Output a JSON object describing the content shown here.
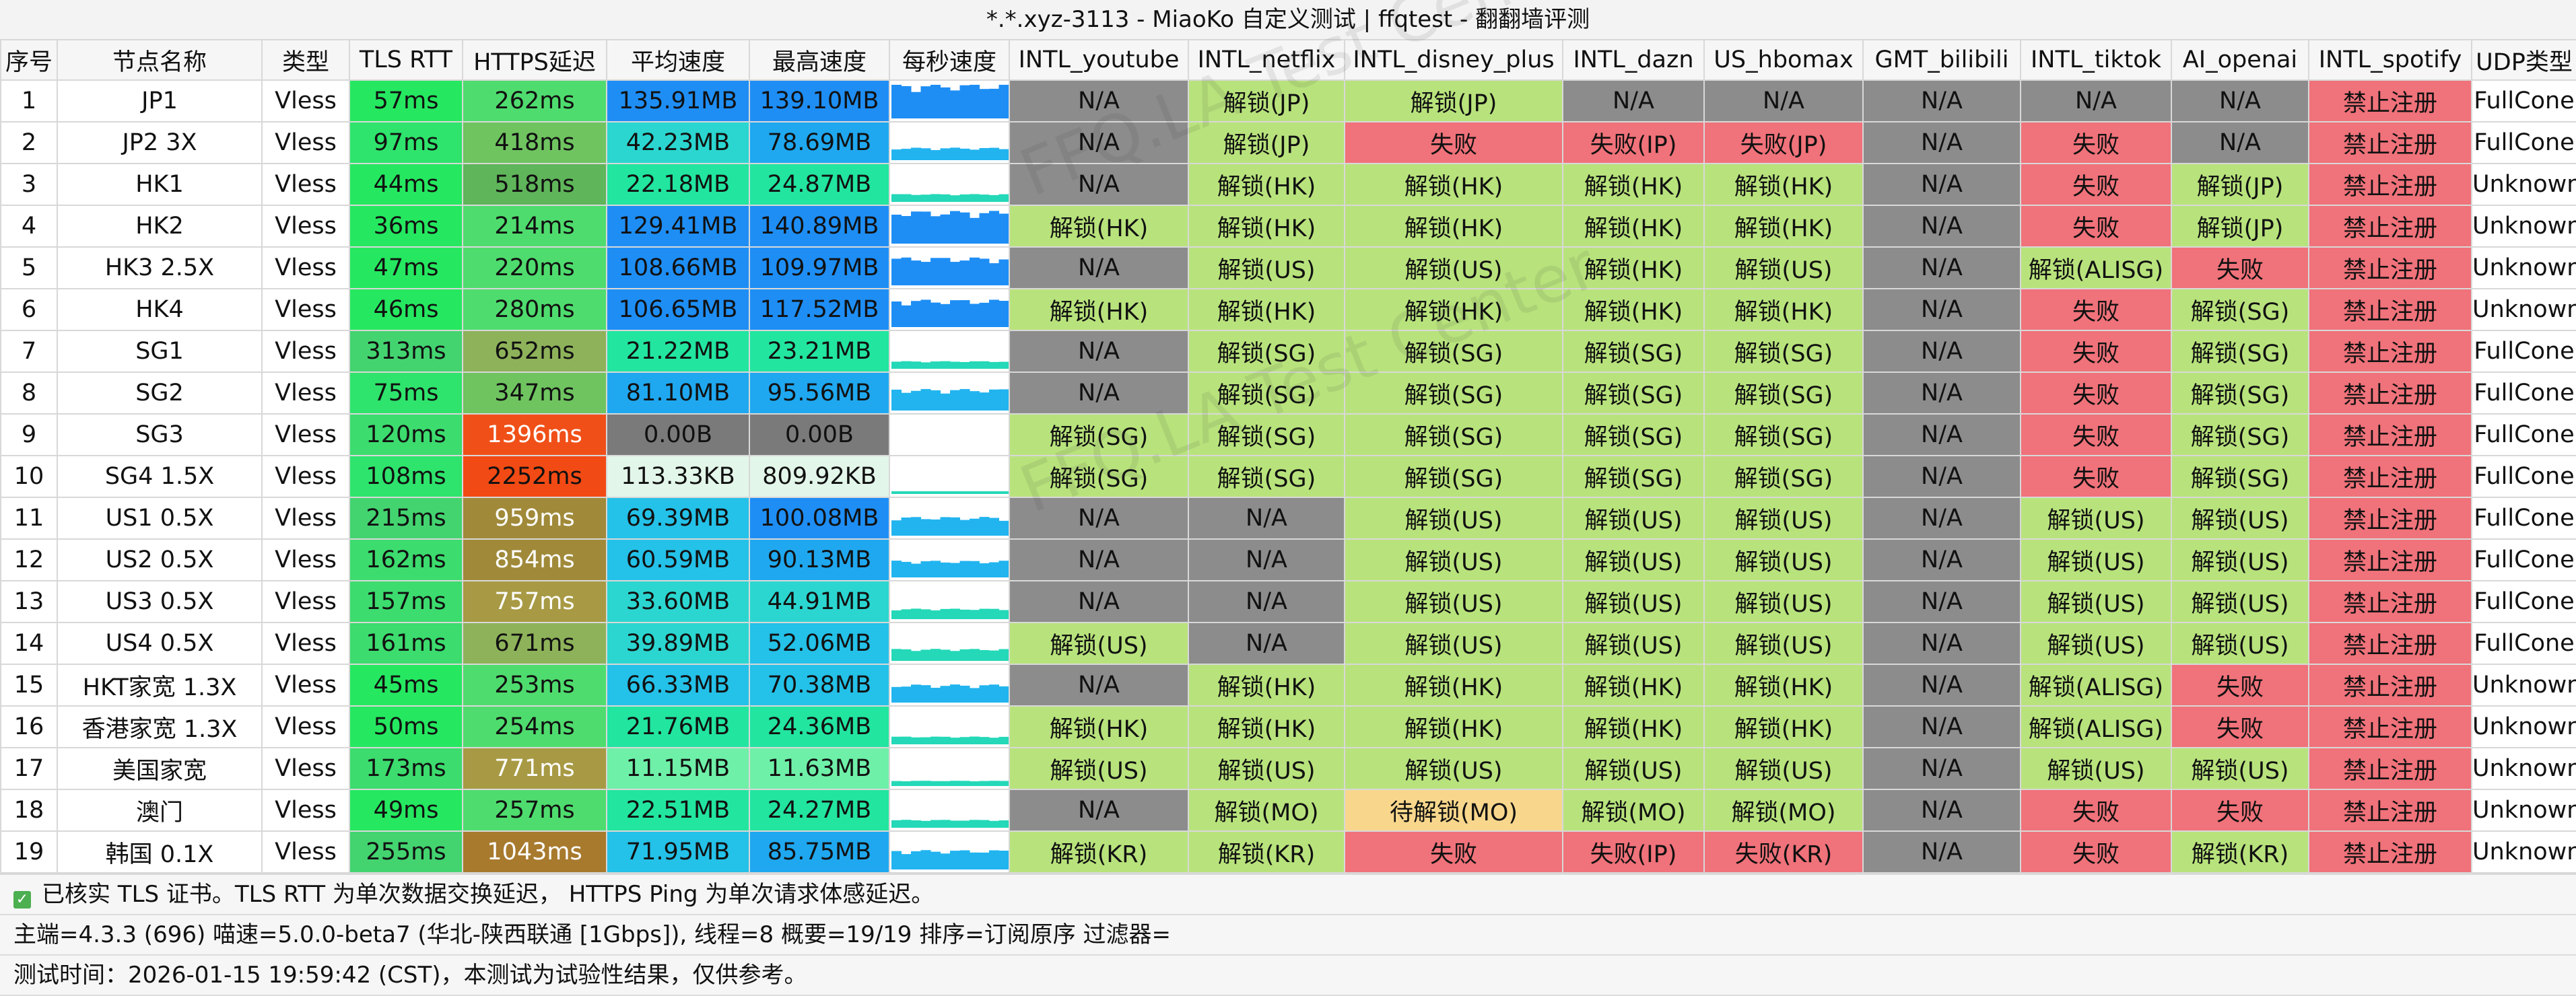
{
  "title": "*.*.xyz-3113 - MiaoKo 自定义测试 | ffqtest - 翻翻墙评测",
  "watermark": "FFQ.LA Test Center",
  "columns": [
    "序号",
    "节点名称",
    "类型",
    "TLS RTT",
    "HTTPS延迟",
    "平均速度",
    "最高速度",
    "每秒速度",
    "INTL_youtube",
    "INTL_netflix",
    "INTL_disney_plus",
    "INTL_dazn",
    "US_hbomax",
    "GMT_bilibili",
    "INTL_tiktok",
    "AI_openai",
    "INTL_spotify",
    "UDP类型"
  ],
  "colors": {
    "ok": "#b8e37c",
    "na": "#8c8c8c",
    "fail": "#f0727a",
    "pending": "#f8d78c",
    "tls": "#2ee86a",
    "https_good": "#5ad16a",
    "https_mid": "#9a9a40",
    "https_bad": "#f05a20",
    "avg": "#1e9ef2",
    "max": "#1e9ef2",
    "spark": "#2196f3"
  },
  "rows": [
    {
      "id": "1",
      "name": "JP1",
      "type": "Vless",
      "tls": "57ms",
      "https": "262ms",
      "avg": "135.91MB",
      "max": "139.10MB",
      "yt": "N/A",
      "nf": "解锁(JP)",
      "dp": "解锁(JP)",
      "dazn": "N/A",
      "hbo": "N/A",
      "bili": "N/A",
      "tt": "N/A",
      "ai": "N/A",
      "sp": "禁止注册",
      "udp": "FullCone"
    },
    {
      "id": "2",
      "name": "JP2 3X",
      "type": "Vless",
      "tls": "97ms",
      "https": "418ms",
      "avg": "42.23MB",
      "max": "78.69MB",
      "yt": "N/A",
      "nf": "解锁(JP)",
      "dp": "失败",
      "dazn": "失败(IP)",
      "hbo": "失败(JP)",
      "bili": "N/A",
      "tt": "失败",
      "ai": "N/A",
      "sp": "禁止注册",
      "udp": "FullCone"
    },
    {
      "id": "3",
      "name": "HK1",
      "type": "Vless",
      "tls": "44ms",
      "https": "518ms",
      "avg": "22.18MB",
      "max": "24.87MB",
      "yt": "N/A",
      "nf": "解锁(HK)",
      "dp": "解锁(HK)",
      "dazn": "解锁(HK)",
      "hbo": "解锁(HK)",
      "bili": "N/A",
      "tt": "失败",
      "ai": "解锁(JP)",
      "sp": "禁止注册",
      "udp": "Unknown"
    },
    {
      "id": "4",
      "name": "HK2",
      "type": "Vless",
      "tls": "36ms",
      "https": "214ms",
      "avg": "129.41MB",
      "max": "140.89MB",
      "yt": "解锁(HK)",
      "nf": "解锁(HK)",
      "dp": "解锁(HK)",
      "dazn": "解锁(HK)",
      "hbo": "解锁(HK)",
      "bili": "N/A",
      "tt": "失败",
      "ai": "解锁(JP)",
      "sp": "禁止注册",
      "udp": "Unknown"
    },
    {
      "id": "5",
      "name": "HK3 2.5X",
      "type": "Vless",
      "tls": "47ms",
      "https": "220ms",
      "avg": "108.66MB",
      "max": "109.97MB",
      "yt": "N/A",
      "nf": "解锁(US)",
      "dp": "解锁(US)",
      "dazn": "解锁(HK)",
      "hbo": "解锁(US)",
      "bili": "N/A",
      "tt": "解锁(ALISG)",
      "ai": "失败",
      "sp": "禁止注册",
      "udp": "Unknown"
    },
    {
      "id": "6",
      "name": "HK4",
      "type": "Vless",
      "tls": "46ms",
      "https": "280ms",
      "avg": "106.65MB",
      "max": "117.52MB",
      "yt": "解锁(HK)",
      "nf": "解锁(HK)",
      "dp": "解锁(HK)",
      "dazn": "解锁(HK)",
      "hbo": "解锁(HK)",
      "bili": "N/A",
      "tt": "失败",
      "ai": "解锁(SG)",
      "sp": "禁止注册",
      "udp": "Unknown"
    },
    {
      "id": "7",
      "name": "SG1",
      "type": "Vless",
      "tls": "313ms",
      "https": "652ms",
      "avg": "21.22MB",
      "max": "23.21MB",
      "yt": "N/A",
      "nf": "解锁(SG)",
      "dp": "解锁(SG)",
      "dazn": "解锁(SG)",
      "hbo": "解锁(SG)",
      "bili": "N/A",
      "tt": "失败",
      "ai": "解锁(SG)",
      "sp": "禁止注册",
      "udp": "FullCone"
    },
    {
      "id": "8",
      "name": "SG2",
      "type": "Vless",
      "tls": "75ms",
      "https": "347ms",
      "avg": "81.10MB",
      "max": "95.56MB",
      "yt": "N/A",
      "nf": "解锁(SG)",
      "dp": "解锁(SG)",
      "dazn": "解锁(SG)",
      "hbo": "解锁(SG)",
      "bili": "N/A",
      "tt": "失败",
      "ai": "解锁(SG)",
      "sp": "禁止注册",
      "udp": "FullCone"
    },
    {
      "id": "9",
      "name": "SG3",
      "type": "Vless",
      "tls": "120ms",
      "https": "1396ms",
      "avg": "0.00B",
      "max": "0.00B",
      "yt": "解锁(SG)",
      "nf": "解锁(SG)",
      "dp": "解锁(SG)",
      "dazn": "解锁(SG)",
      "hbo": "解锁(SG)",
      "bili": "N/A",
      "tt": "失败",
      "ai": "解锁(SG)",
      "sp": "禁止注册",
      "udp": "FullCone"
    },
    {
      "id": "10",
      "name": "SG4 1.5X",
      "type": "Vless",
      "tls": "108ms",
      "https": "2252ms",
      "avg": "113.33KB",
      "max": "809.92KB",
      "yt": "解锁(SG)",
      "nf": "解锁(SG)",
      "dp": "解锁(SG)",
      "dazn": "解锁(SG)",
      "hbo": "解锁(SG)",
      "bili": "N/A",
      "tt": "失败",
      "ai": "解锁(SG)",
      "sp": "禁止注册",
      "udp": "FullCone"
    },
    {
      "id": "11",
      "name": "US1 0.5X",
      "type": "Vless",
      "tls": "215ms",
      "https": "959ms",
      "avg": "69.39MB",
      "max": "100.08MB",
      "yt": "N/A",
      "nf": "N/A",
      "dp": "解锁(US)",
      "dazn": "解锁(US)",
      "hbo": "解锁(US)",
      "bili": "N/A",
      "tt": "解锁(US)",
      "ai": "解锁(US)",
      "sp": "禁止注册",
      "udp": "FullCone"
    },
    {
      "id": "12",
      "name": "US2 0.5X",
      "type": "Vless",
      "tls": "162ms",
      "https": "854ms",
      "avg": "60.59MB",
      "max": "90.13MB",
      "yt": "N/A",
      "nf": "N/A",
      "dp": "解锁(US)",
      "dazn": "解锁(US)",
      "hbo": "解锁(US)",
      "bili": "N/A",
      "tt": "解锁(US)",
      "ai": "解锁(US)",
      "sp": "禁止注册",
      "udp": "FullCone"
    },
    {
      "id": "13",
      "name": "US3 0.5X",
      "type": "Vless",
      "tls": "157ms",
      "https": "757ms",
      "avg": "33.60MB",
      "max": "44.91MB",
      "yt": "N/A",
      "nf": "N/A",
      "dp": "解锁(US)",
      "dazn": "解锁(US)",
      "hbo": "解锁(US)",
      "bili": "N/A",
      "tt": "解锁(US)",
      "ai": "解锁(US)",
      "sp": "禁止注册",
      "udp": "FullCone"
    },
    {
      "id": "14",
      "name": "US4 0.5X",
      "type": "Vless",
      "tls": "161ms",
      "https": "671ms",
      "avg": "39.89MB",
      "max": "52.06MB",
      "yt": "解锁(US)",
      "nf": "N/A",
      "dp": "解锁(US)",
      "dazn": "解锁(US)",
      "hbo": "解锁(US)",
      "bili": "N/A",
      "tt": "解锁(US)",
      "ai": "解锁(US)",
      "sp": "禁止注册",
      "udp": "FullCone"
    },
    {
      "id": "15",
      "name": "HKT家宽 1.3X",
      "type": "Vless",
      "tls": "45ms",
      "https": "253ms",
      "avg": "66.33MB",
      "max": "70.38MB",
      "yt": "N/A",
      "nf": "解锁(HK)",
      "dp": "解锁(HK)",
      "dazn": "解锁(HK)",
      "hbo": "解锁(HK)",
      "bili": "N/A",
      "tt": "解锁(ALISG)",
      "ai": "失败",
      "sp": "禁止注册",
      "udp": "Unknown"
    },
    {
      "id": "16",
      "name": "香港家宽 1.3X",
      "type": "Vless",
      "tls": "50ms",
      "https": "254ms",
      "avg": "21.76MB",
      "max": "24.36MB",
      "yt": "解锁(HK)",
      "nf": "解锁(HK)",
      "dp": "解锁(HK)",
      "dazn": "解锁(HK)",
      "hbo": "解锁(HK)",
      "bili": "N/A",
      "tt": "解锁(ALISG)",
      "ai": "失败",
      "sp": "禁止注册",
      "udp": "Unknown"
    },
    {
      "id": "17",
      "name": "美国家宽",
      "type": "Vless",
      "tls": "173ms",
      "https": "771ms",
      "avg": "11.15MB",
      "max": "11.63MB",
      "yt": "解锁(US)",
      "nf": "解锁(US)",
      "dp": "解锁(US)",
      "dazn": "解锁(US)",
      "hbo": "解锁(US)",
      "bili": "N/A",
      "tt": "解锁(US)",
      "ai": "解锁(US)",
      "sp": "禁止注册",
      "udp": "Unknown"
    },
    {
      "id": "18",
      "name": "澳门",
      "type": "Vless",
      "tls": "49ms",
      "https": "257ms",
      "avg": "22.51MB",
      "max": "24.27MB",
      "yt": "N/A",
      "nf": "解锁(MO)",
      "dp": "待解锁(MO)",
      "dazn": "解锁(MO)",
      "hbo": "解锁(MO)",
      "bili": "N/A",
      "tt": "失败",
      "ai": "失败",
      "sp": "禁止注册",
      "udp": "Unknown"
    },
    {
      "id": "19",
      "name": "韩国 0.1X",
      "type": "Vless",
      "tls": "255ms",
      "https": "1043ms",
      "avg": "71.95MB",
      "max": "85.75MB",
      "yt": "解锁(KR)",
      "nf": "解锁(KR)",
      "dp": "失败",
      "dazn": "失败(IP)",
      "hbo": "失败(KR)",
      "bili": "N/A",
      "tt": "失败",
      "ai": "解锁(KR)",
      "sp": "禁止注册",
      "udp": "Unknown"
    }
  ],
  "footer": {
    "cert_icon": "check-icon",
    "cert": "已核实 TLS 证书。TLS RTT 为单次数据交换延迟， HTTPS Ping 为单次请求体感延迟。",
    "info": "主端=4.3.3 (696) 喵速=5.0.0-beta7 (华北-陕西联通 [1Gbps]), 线程=8 概要=19/19 排序=订阅原序 过滤器=",
    "time": "测试时间：2026-01-15 19:59:42 (CST)，本测试为试验性结果，仅供参考。"
  }
}
